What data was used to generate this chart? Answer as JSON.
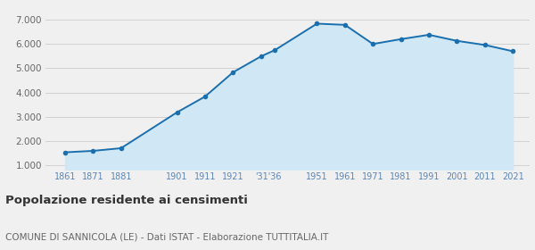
{
  "years": [
    1861,
    1871,
    1881,
    1901,
    1911,
    1921,
    1931,
    1936,
    1951,
    1961,
    1971,
    1981,
    1991,
    2001,
    2011,
    2021
  ],
  "population": [
    1530,
    1590,
    1700,
    3180,
    3830,
    4830,
    5490,
    5750,
    6840,
    6790,
    6000,
    6200,
    6380,
    6130,
    5960,
    5700
  ],
  "x_tick_labels": [
    "1861",
    "1871",
    "1881",
    "1901",
    "1911",
    "1921",
    "'31'36",
    "1951",
    "1961",
    "1971",
    "1981",
    "1991",
    "2001",
    "2011",
    "2021"
  ],
  "x_tick_positions": [
    1861,
    1871,
    1881,
    1901,
    1911,
    1921,
    1933.5,
    1951,
    1961,
    1971,
    1981,
    1991,
    2001,
    2011,
    2021
  ],
  "line_color": "#1a6fae",
  "fill_color": "#d0e8f5",
  "marker_color": "#1a6fae",
  "grid_color": "#cccccc",
  "background_color": "#f0f0f0",
  "ylim": [
    800,
    7300
  ],
  "yticks": [
    1000,
    2000,
    3000,
    4000,
    5000,
    6000,
    7000
  ],
  "xlim": [
    1854,
    2027
  ],
  "title": "Popolazione residente ai censimenti",
  "subtitle": "COMUNE DI SANNICOLA (LE) - Dati ISTAT - Elaborazione TUTTITALIA.IT",
  "title_fontsize": 9.5,
  "subtitle_fontsize": 7.5
}
